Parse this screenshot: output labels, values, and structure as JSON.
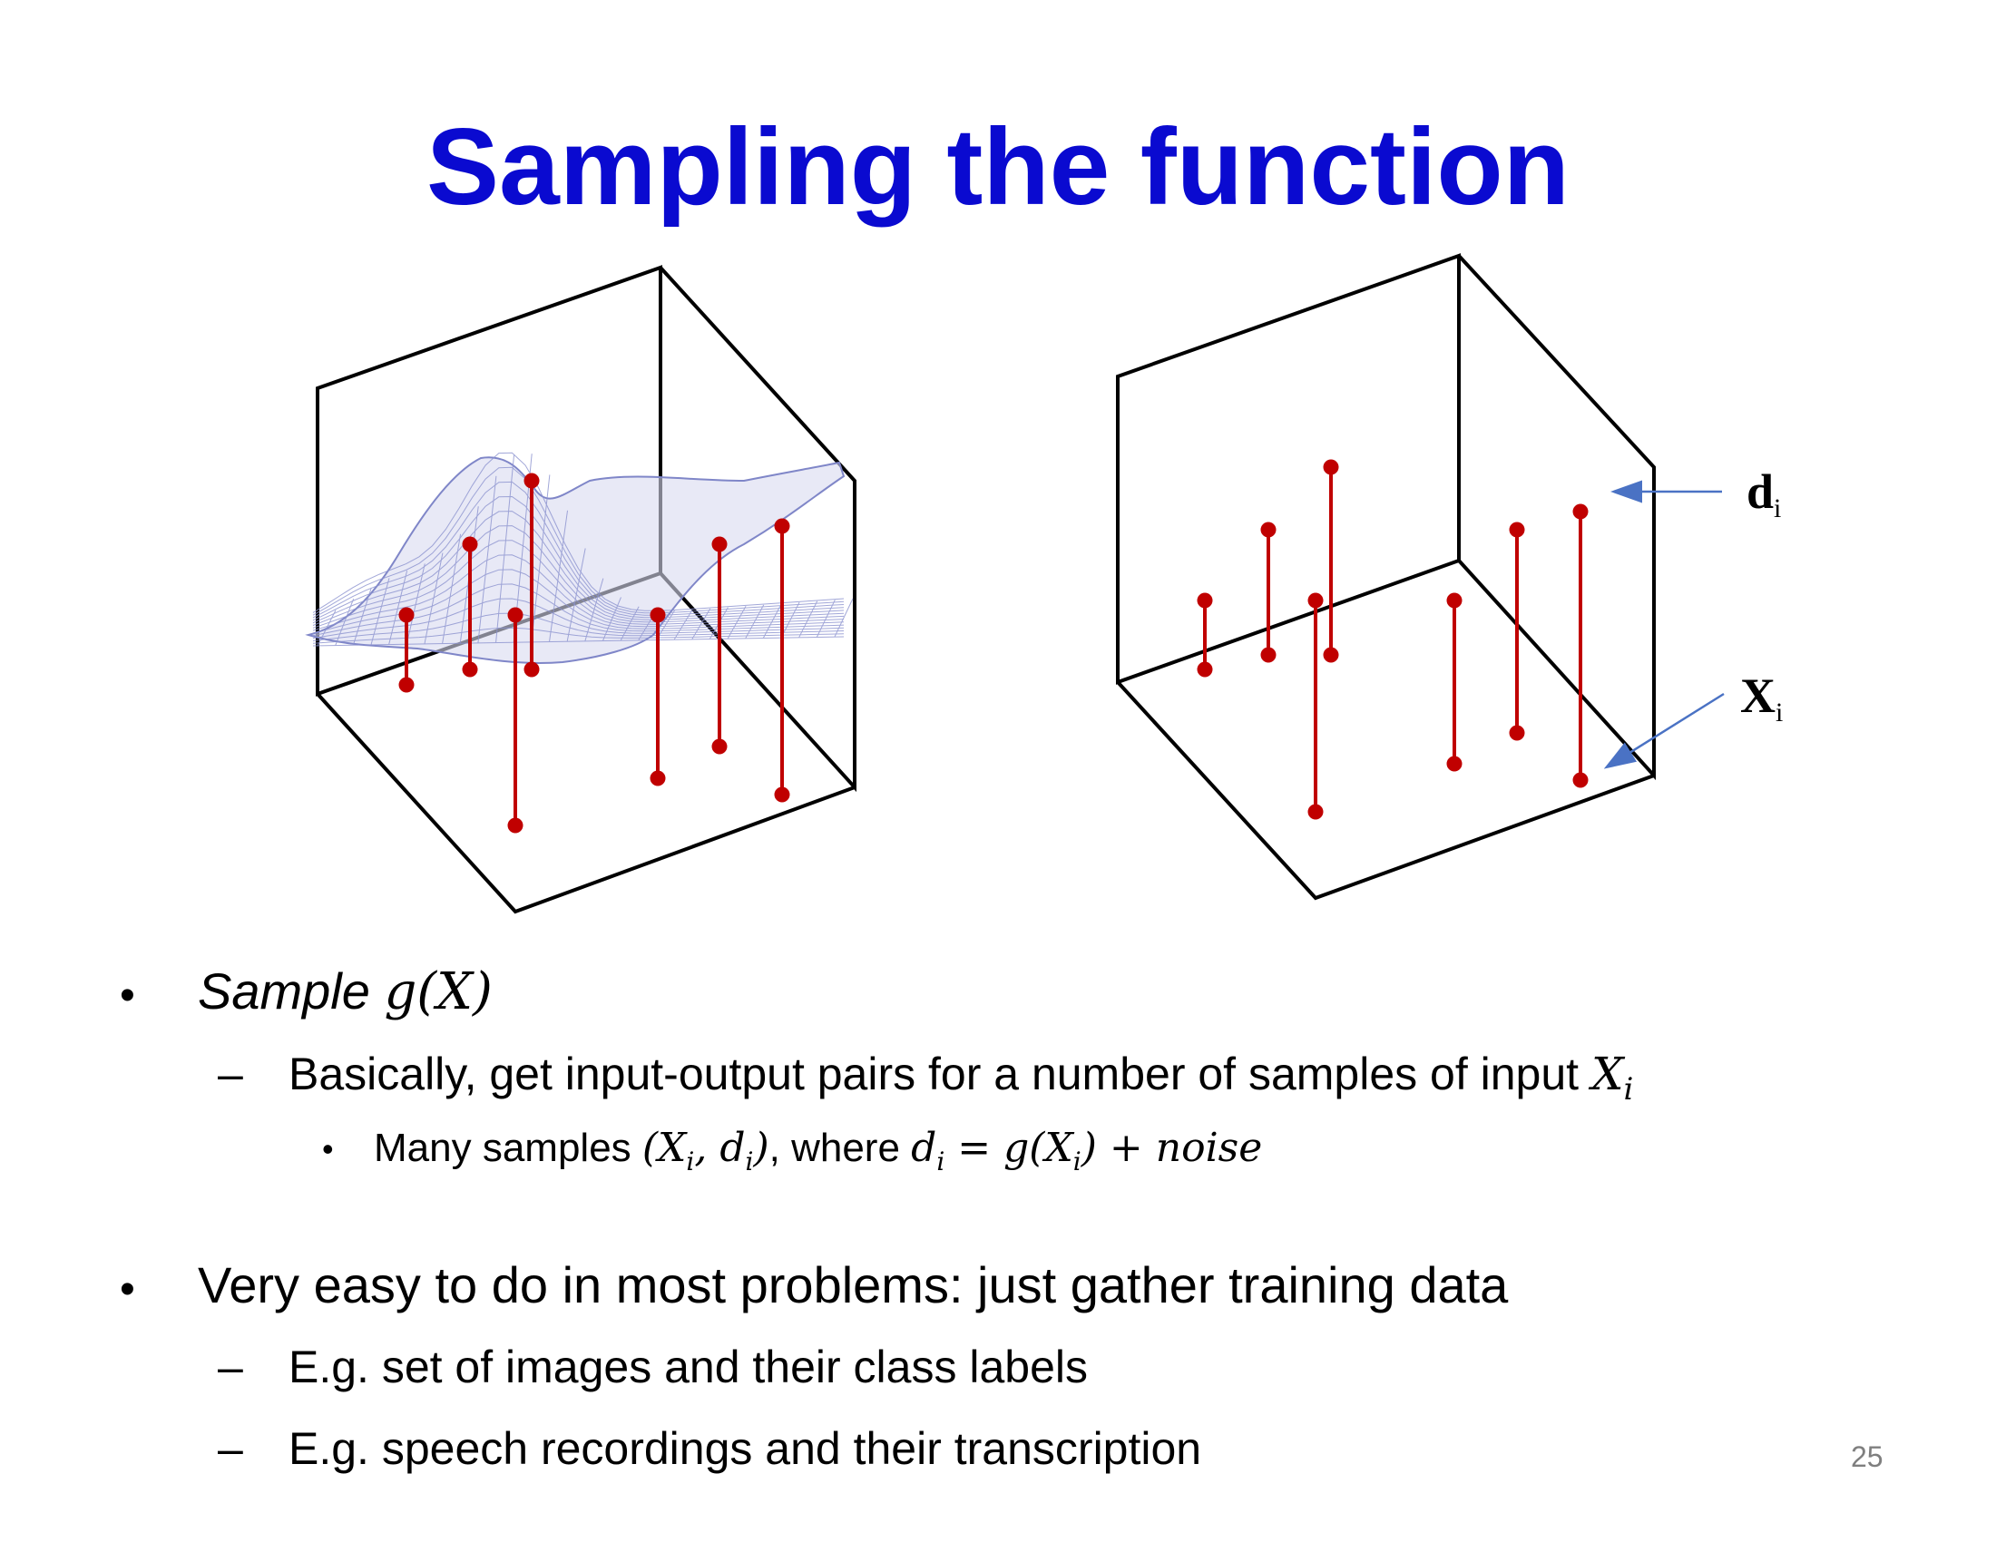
{
  "slide": {
    "title": "Sampling the function",
    "page_number": "25"
  },
  "figure": {
    "label_d": "d",
    "label_d_sub": "i",
    "label_x": "X",
    "label_x_sub": "i",
    "colors": {
      "stem": "#c00000",
      "mesh": "#7f86c8",
      "box": "#000000",
      "arrow": "#4a72c4"
    }
  },
  "bullets": {
    "b1": {
      "text": "Sample ",
      "math": "g(X)"
    },
    "b1_sub": {
      "text": "Basically, get input-output pairs for a number of samples of input ",
      "math": "X",
      "math_sub": "i"
    },
    "b1_subsub": {
      "prefix": "Many samples ",
      "math1": "(X",
      "math1_sub": "i",
      "math1_mid": ", d",
      "math1_sub2": "i",
      "math1_end": ")",
      "mid": ", where ",
      "math2a": "d",
      "math2a_sub": "i",
      "math2b": " = g(X",
      "math2b_sub": "i",
      "math2c": ") + noise"
    },
    "b2": {
      "text": "Very easy to do in most problems:  just gather training data"
    },
    "b2_sub1": {
      "text": "E.g. set of images and their class labels"
    },
    "b2_sub2": {
      "text": "E.g. speech recordings and their transcription"
    }
  }
}
